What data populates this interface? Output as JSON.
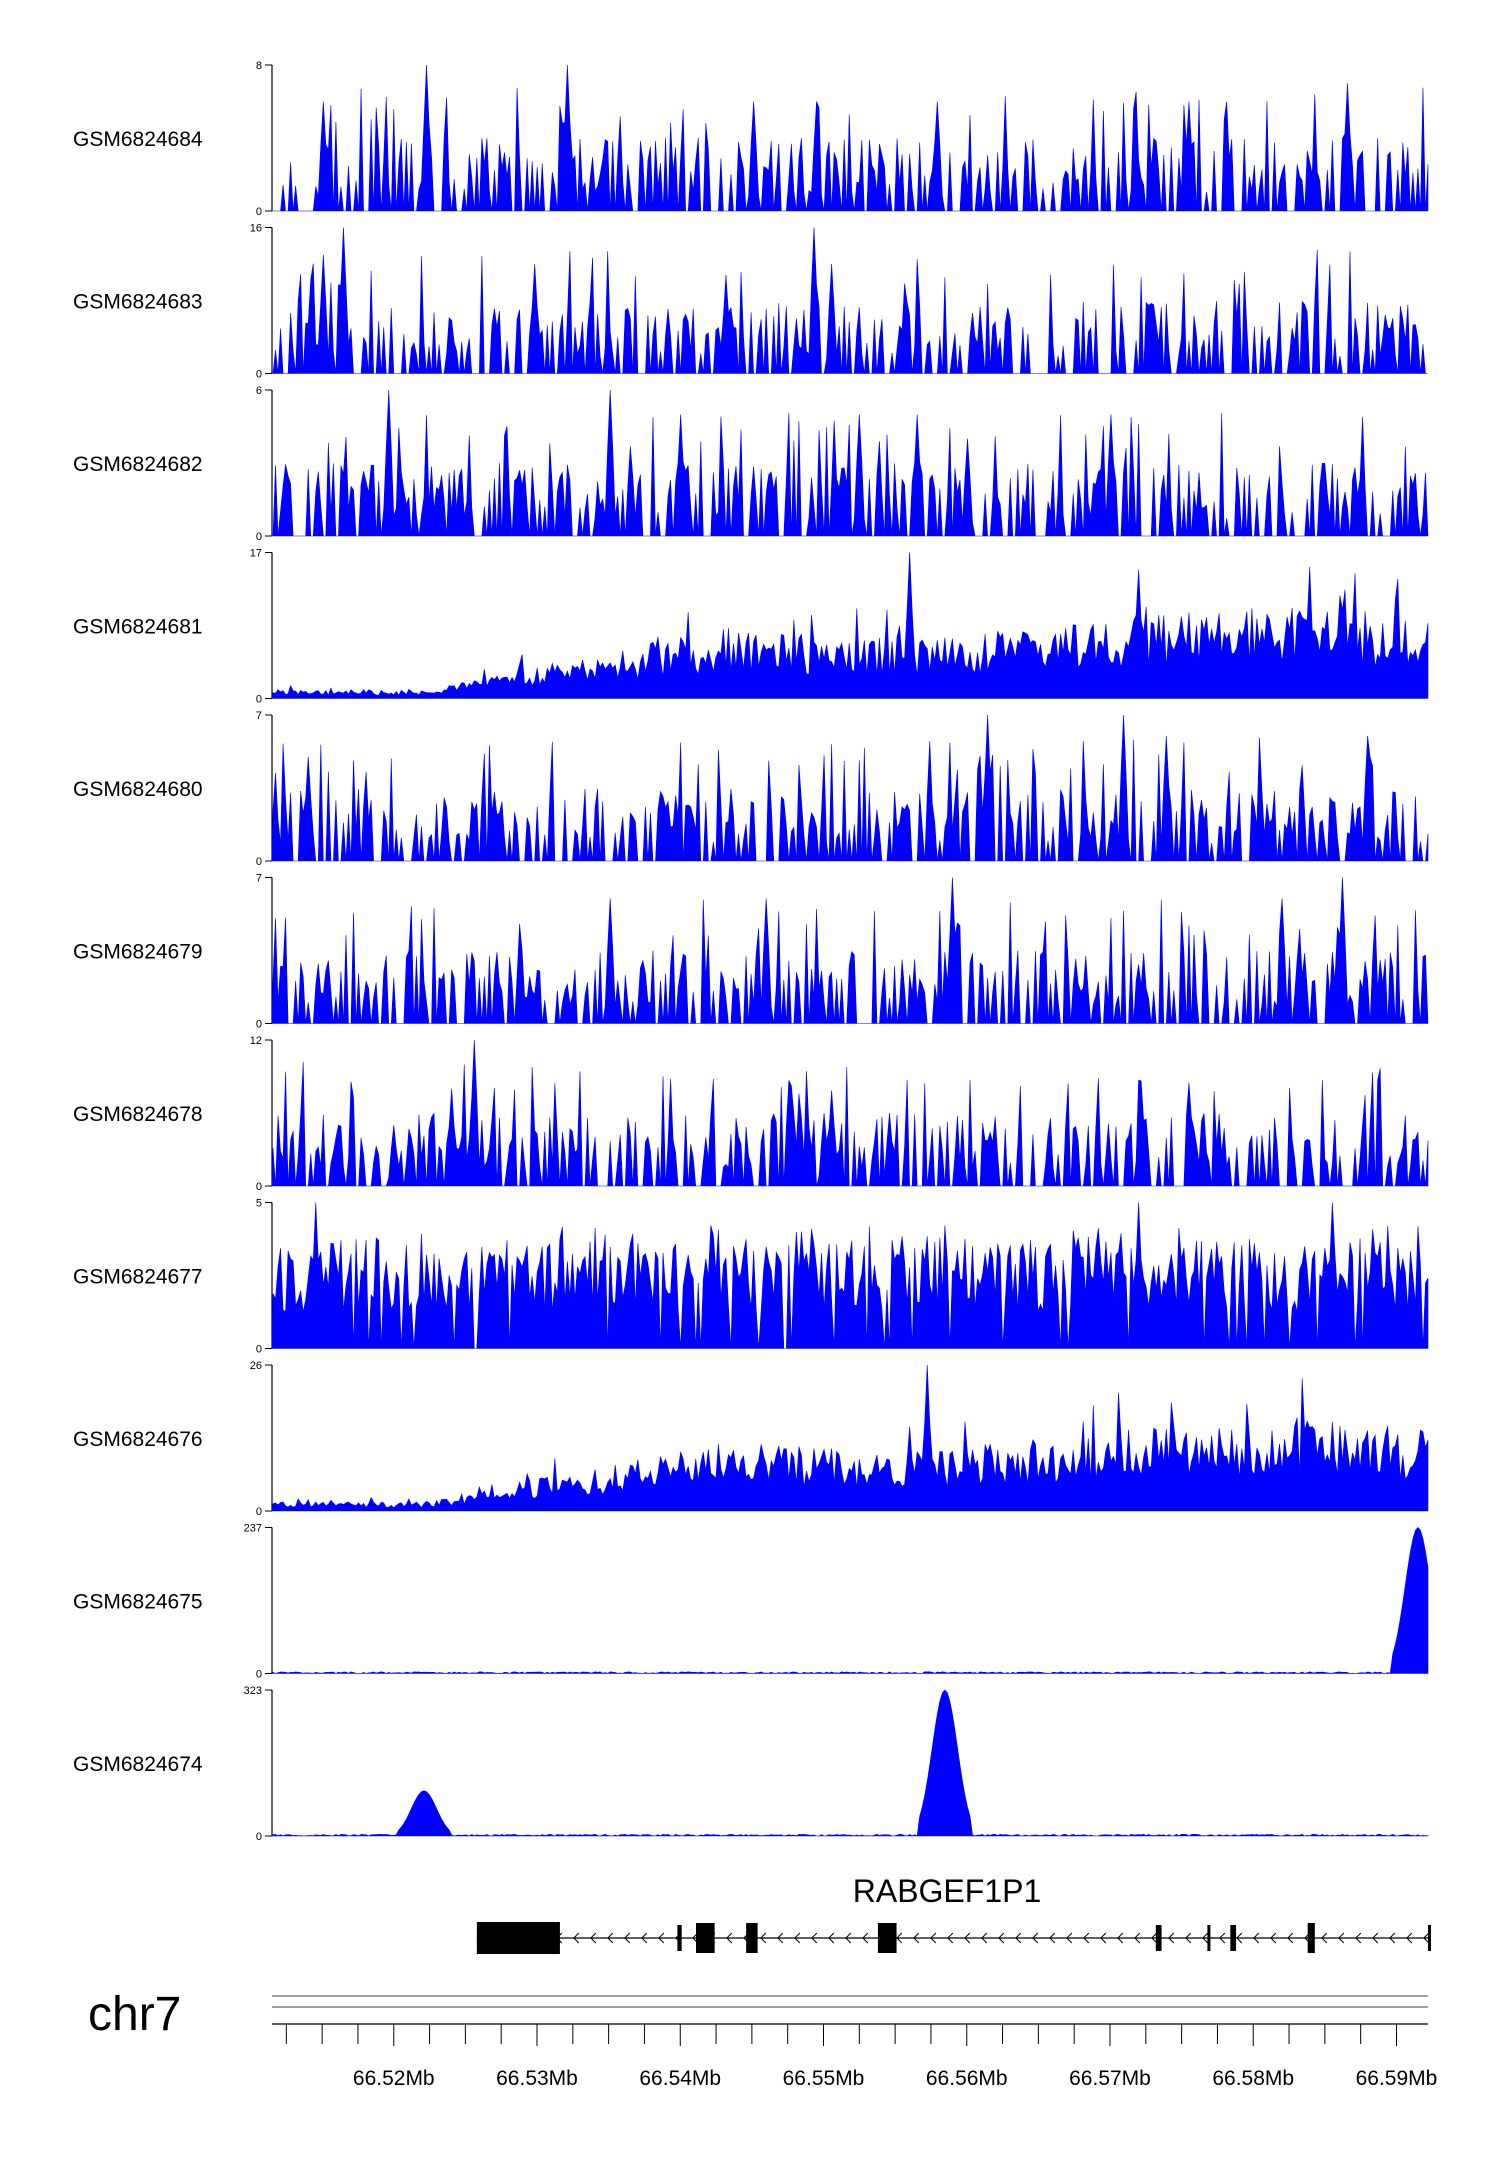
{
  "chart_data": {
    "type": "area",
    "chromosome": "chr7",
    "gene": {
      "name": "RABGEF1P1",
      "strand": "-",
      "start": 66.5258,
      "end": 66.5922
    },
    "exons": [
      [
        66.5258,
        66.5316
      ],
      [
        66.5398,
        66.5401
      ],
      [
        66.5411,
        66.5424
      ],
      [
        66.5446,
        66.5454
      ],
      [
        66.5538,
        66.5551
      ],
      [
        66.5732,
        66.5736
      ],
      [
        66.5768,
        66.577
      ],
      [
        66.5784,
        66.5788
      ],
      [
        66.5838,
        66.5843
      ],
      [
        66.5922,
        66.5922
      ]
    ],
    "xlim": [
      66.5115,
      66.5922
    ],
    "xticks": [
      66.52,
      66.53,
      66.54,
      66.55,
      66.56,
      66.57,
      66.58,
      66.59
    ],
    "xtick_labels": [
      "66.52Mb",
      "66.53Mb",
      "66.54Mb",
      "66.55Mb",
      "66.56Mb",
      "66.57Mb",
      "66.58Mb",
      "66.59Mb"
    ],
    "series": [
      {
        "name": "GSM6824684",
        "max": 8,
        "min": 0,
        "pattern": "sparse",
        "peaks": [
          [
            66.5223,
            8
          ],
          [
            66.515,
            6
          ],
          [
            66.532,
            8
          ],
          [
            66.545,
            6
          ],
          [
            66.5495,
            6
          ],
          [
            66.558,
            6
          ],
          [
            66.5755,
            6
          ],
          [
            66.5865,
            7
          ]
        ]
      },
      {
        "name": "GSM6824683",
        "max": 16,
        "min": 0,
        "pattern": "sparse",
        "peaks": [
          [
            66.5165,
            16
          ],
          [
            66.515,
            13
          ],
          [
            66.5297,
            12
          ],
          [
            66.5493,
            16
          ],
          [
            66.5505,
            12
          ],
          [
            66.562,
            4
          ]
        ]
      },
      {
        "name": "GSM6824682",
        "max": 6,
        "min": 0,
        "pattern": "sparse",
        "peaks": [
          [
            66.5195,
            6
          ],
          [
            66.535,
            6
          ],
          [
            66.54,
            5
          ],
          [
            66.5525,
            5
          ],
          [
            66.5565,
            5
          ],
          [
            66.56,
            4
          ],
          [
            66.57,
            5
          ]
        ]
      },
      {
        "name": "GSM6824681",
        "max": 17,
        "min": 0,
        "pattern": "ramp",
        "peaks": [
          [
            66.556,
            17
          ],
          [
            66.572,
            15
          ],
          [
            66.584,
            13
          ],
          [
            66.586,
            12
          ],
          [
            66.572,
            14
          ]
        ]
      },
      {
        "name": "GSM6824680",
        "max": 7,
        "min": 0,
        "pattern": "sparse",
        "peaks": [
          [
            66.5615,
            7
          ],
          [
            66.571,
            7
          ],
          [
            66.574,
            6
          ],
          [
            66.588,
            6
          ],
          [
            66.514,
            5
          ]
        ]
      },
      {
        "name": "GSM6824679",
        "max": 7,
        "min": 0,
        "pattern": "sparse",
        "peaks": [
          [
            66.559,
            7
          ],
          [
            66.5862,
            7
          ],
          [
            66.582,
            6
          ],
          [
            66.546,
            6
          ],
          [
            66.535,
            6
          ]
        ]
      },
      {
        "name": "GSM6824678",
        "max": 12,
        "min": 0,
        "pattern": "sparse",
        "peaks": [
          [
            66.5255,
            12
          ],
          [
            66.524,
            8
          ],
          [
            66.55,
            6
          ],
          [
            66.5545,
            6
          ],
          [
            66.52,
            5
          ]
        ]
      },
      {
        "name": "GSM6824677",
        "max": 5,
        "min": 0,
        "pattern": "dense",
        "peaks": [
          [
            66.572,
            5
          ],
          [
            66.5145,
            5
          ],
          [
            66.5855,
            5
          ],
          [
            66.5485,
            4
          ]
        ]
      },
      {
        "name": "GSM6824676",
        "max": 26,
        "min": 0,
        "pattern": "ramp",
        "peaks": [
          [
            66.5572,
            26
          ],
          [
            66.556,
            15
          ],
          [
            66.55,
            11
          ],
          [
            66.542,
            11
          ]
        ]
      },
      {
        "name": "GSM6824675",
        "max": 237,
        "min": 0,
        "pattern": "single",
        "peaks": [
          [
            66.5915,
            237
          ]
        ]
      },
      {
        "name": "GSM6824674",
        "max": 323,
        "min": 0,
        "pattern": "single",
        "peaks": [
          [
            66.5585,
            323
          ],
          [
            66.522,
            100
          ]
        ]
      }
    ]
  },
  "colors": {
    "signal": "#0000ff",
    "axis": "#000000",
    "gene": "#000000",
    "ideogram": "#808080"
  }
}
